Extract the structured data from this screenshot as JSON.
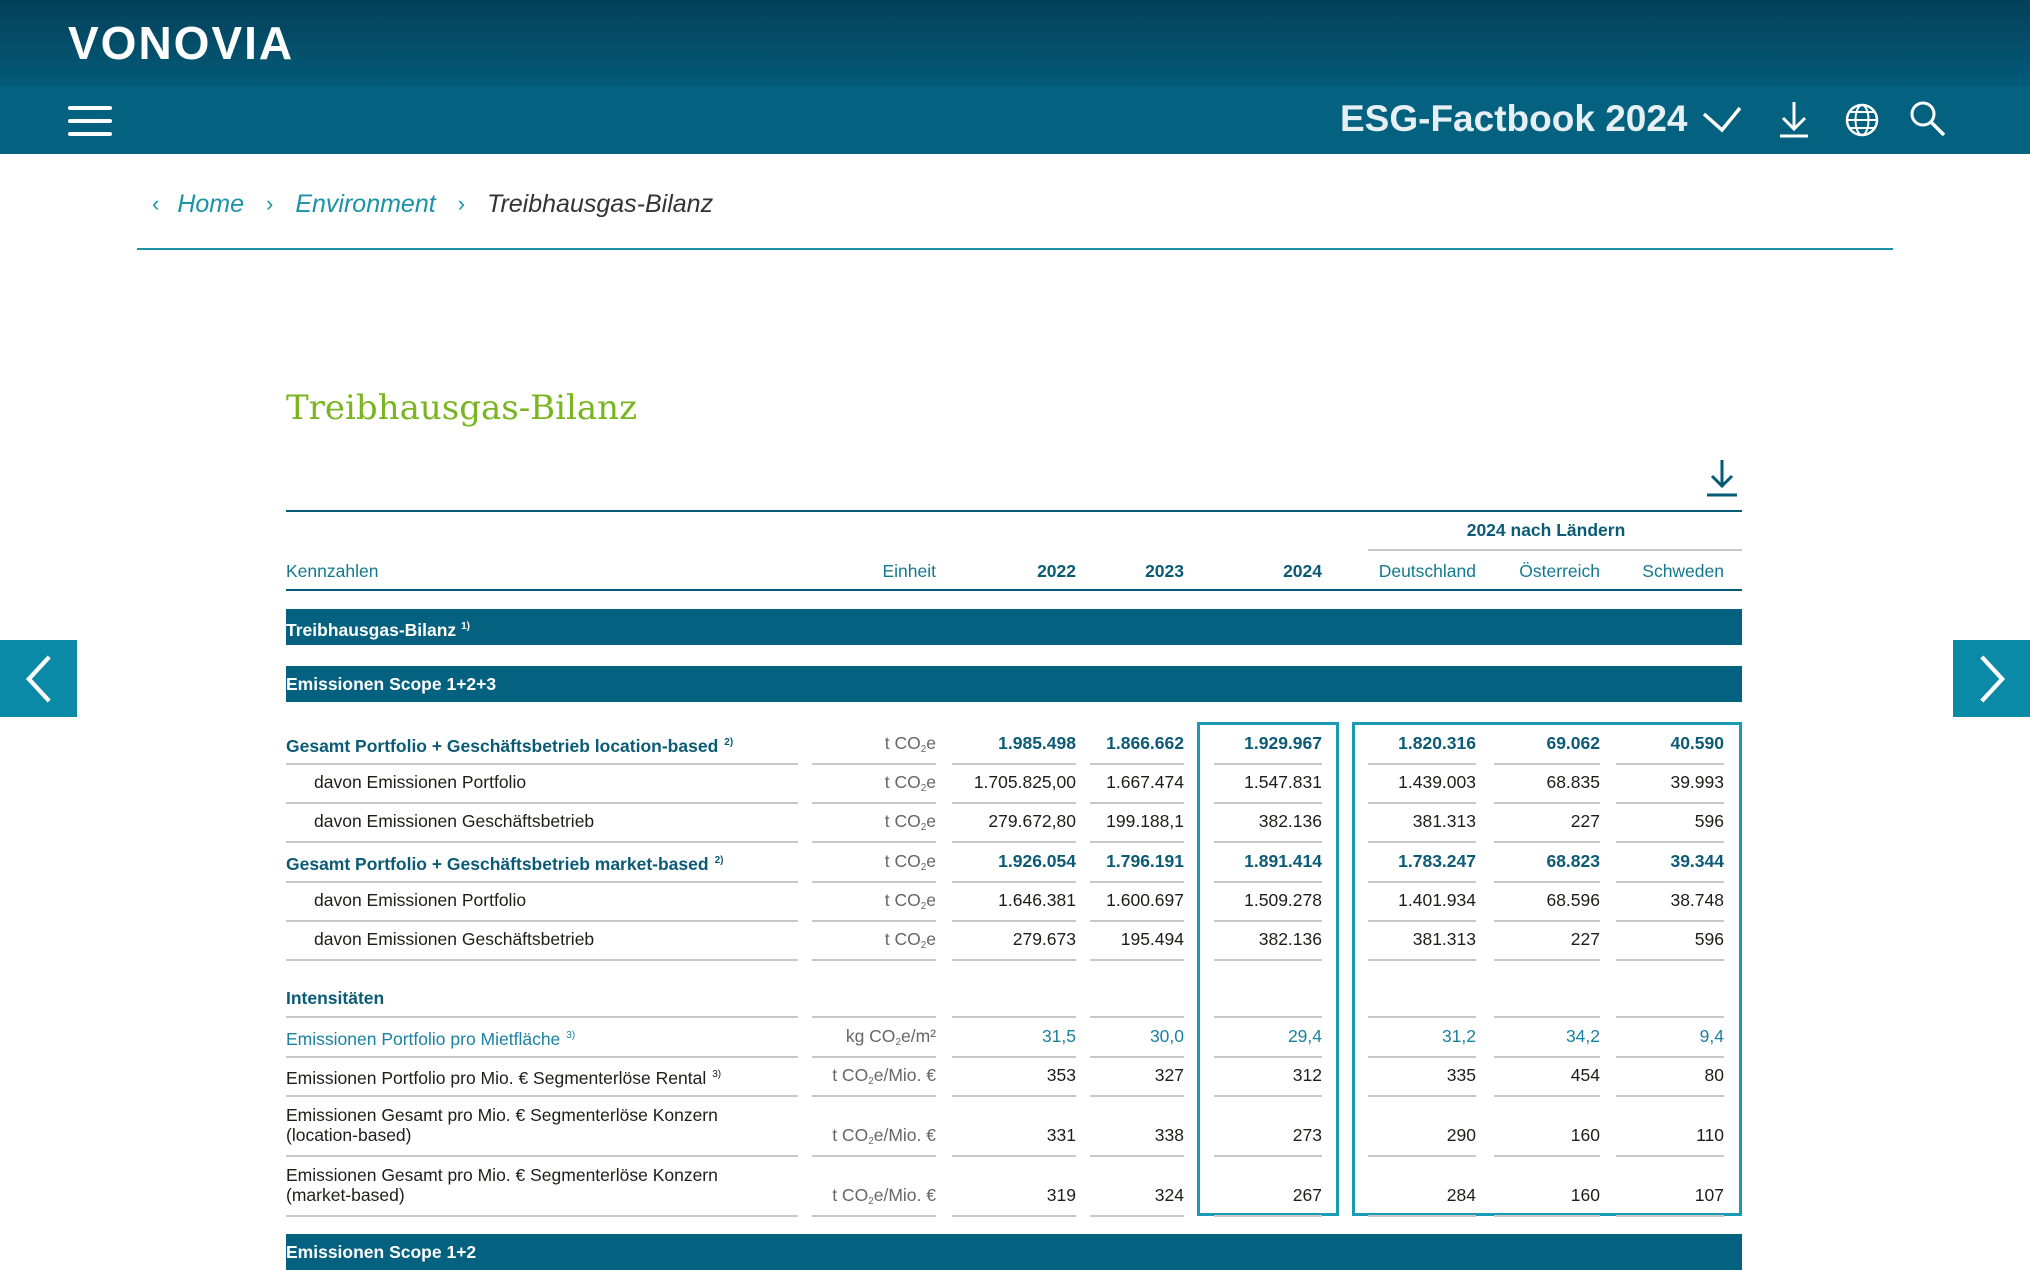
{
  "header": {
    "logo": "VONOVIA",
    "factbook_title": "ESG-Factbook 2024",
    "icons": [
      "menu-icon",
      "chevron-down-icon",
      "download-icon",
      "globe-icon",
      "search-icon"
    ]
  },
  "breadcrumb": {
    "items": [
      "Home",
      "Environment"
    ],
    "current": "Treibhausgas-Bilanz"
  },
  "page": {
    "title": "Treibhausgas-Bilanz"
  },
  "table": {
    "group_header": "2024 nach Ländern",
    "columns": {
      "kennzahlen": "Kennzahlen",
      "einheit": "Einheit",
      "y2022": "2022",
      "y2023": "2023",
      "y2024": "2024",
      "de": "Deutschland",
      "at": "Österreich",
      "se": "Schweden"
    },
    "sections": {
      "bilanz": "Treibhausgas-Bilanz",
      "bilanz_sup": "1)",
      "scope123": "Emissionen Scope 1+2+3",
      "intensitaeten": "Intensitäten",
      "scope12": "Emissionen Scope 1+2"
    },
    "units": {
      "t_co2e": "t CO",
      "t_co2e_sub": "2",
      "t_co2e_tail": "e",
      "kg_m2": "kg CO",
      "kg_m2_tail": "e/m²",
      "t_mio": "t CO",
      "t_mio_tail": "e/Mio. €"
    },
    "rows": [
      {
        "label": "Gesamt Portfolio + Geschäftsbetrieb location-based",
        "sup": "2)",
        "v2022": "1.985.498",
        "v2023": "1.866.662",
        "v2024": "1.929.967",
        "de": "1.820.316",
        "at": "69.062",
        "se": "40.590"
      },
      {
        "label": "davon Emissionen Portfolio",
        "v2022": "1.705.825,00",
        "v2023": "1.667.474",
        "v2024": "1.547.831",
        "de": "1.439.003",
        "at": "68.835",
        "se": "39.993"
      },
      {
        "label": "davon Emissionen Geschäftsbetrieb",
        "v2022": "279.672,80",
        "v2023": "199.188,1",
        "v2024": "382.136",
        "de": "381.313",
        "at": "227",
        "se": "596"
      },
      {
        "label": "Gesamt Portfolio + Geschäftsbetrieb market-based",
        "sup": "2)",
        "v2022": "1.926.054",
        "v2023": "1.796.191",
        "v2024": "1.891.414",
        "de": "1.783.247",
        "at": "68.823",
        "se": "39.344"
      },
      {
        "label": "davon Emissionen Portfolio",
        "v2022": "1.646.381",
        "v2023": "1.600.697",
        "v2024": "1.509.278",
        "de": "1.401.934",
        "at": "68.596",
        "se": "38.748"
      },
      {
        "label": "davon Emissionen Geschäftsbetrieb",
        "v2022": "279.673",
        "v2023": "195.494",
        "v2024": "382.136",
        "de": "381.313",
        "at": "227",
        "se": "596"
      },
      {
        "label": "Emissionen Portfolio pro Mietfläche",
        "sup": "3)",
        "v2022": "31,5",
        "v2023": "30,0",
        "v2024": "29,4",
        "de": "31,2",
        "at": "34,2",
        "se": "9,4"
      },
      {
        "label": "Emissionen Portfolio pro Mio. € Segmenterlöse Rental",
        "sup": "3)",
        "v2022": "353",
        "v2023": "327",
        "v2024": "312",
        "de": "335",
        "at": "454",
        "se": "80"
      },
      {
        "label": "Emissionen Gesamt pro Mio. € Segmenterlöse Konzern",
        "label2": "(location-based)",
        "v2022": "331",
        "v2023": "338",
        "v2024": "273",
        "de": "290",
        "at": "160",
        "se": "110"
      },
      {
        "label": "Emissionen Gesamt pro Mio. € Segmenterlöse Konzern",
        "label2": "(market-based)",
        "v2022": "319",
        "v2023": "324",
        "v2024": "267",
        "de": "284",
        "at": "160",
        "se": "107"
      }
    ]
  }
}
